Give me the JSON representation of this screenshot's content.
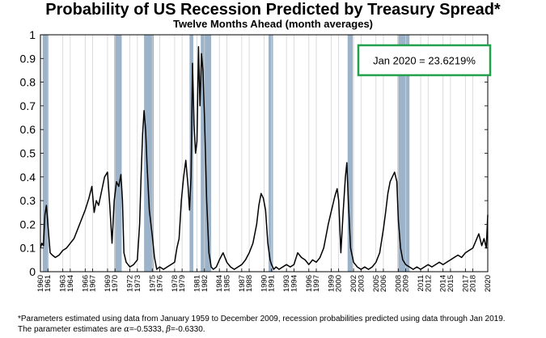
{
  "chart_data": {
    "type": "line",
    "title": "Probability of US Recession Predicted by Treasury Spread*",
    "subtitle": "Twelve Months Ahead (month averages)",
    "xlabel": "",
    "ylabel": "",
    "ylim": [
      0,
      1
    ],
    "xlim": [
      1960,
      2020
    ],
    "y_ticks": [
      "0",
      "0.1",
      "0.2",
      "0.3",
      "0.4",
      "0.5",
      "0.6",
      "0.7",
      "0.8",
      "0.9",
      "1"
    ],
    "x_ticks": [
      "1960",
      "1961",
      "1963",
      "1964",
      "1966",
      "1967",
      "1969",
      "1970",
      "1972",
      "1973",
      "1975",
      "1976",
      "1978",
      "1979",
      "1981",
      "1982",
      "1984",
      "1985",
      "1987",
      "1988",
      "1990",
      "1991",
      "1993",
      "1994",
      "1996",
      "1997",
      "1999",
      "2000",
      "2002",
      "2003",
      "2005",
      "2006",
      "2008",
      "2009",
      "2011",
      "2012",
      "2014",
      "2015",
      "2017",
      "2018",
      "2020"
    ],
    "grid": "vertical",
    "recessions": [
      [
        1960.3,
        1961.1
      ],
      [
        1969.9,
        1970.9
      ],
      [
        1973.9,
        1975.2
      ],
      [
        1980.0,
        1980.5
      ],
      [
        1981.5,
        1982.9
      ],
      [
        1990.6,
        1991.2
      ],
      [
        2001.2,
        2001.9
      ],
      [
        2007.9,
        2009.5
      ]
    ],
    "series": [
      {
        "x": [
          1960.0,
          1960.2,
          1960.4,
          1960.6,
          1960.8,
          1961.0,
          1961.3,
          1961.6,
          1962.0,
          1962.5,
          1963.0,
          1963.5,
          1964.0,
          1964.5,
          1965.0,
          1965.5,
          1966.0,
          1966.5,
          1966.9,
          1967.2,
          1967.5,
          1967.8,
          1968.2,
          1968.6,
          1969.0,
          1969.3,
          1969.6,
          1969.9,
          1970.2,
          1970.5,
          1970.8,
          1971.0,
          1971.2,
          1971.5,
          1972.0,
          1972.5,
          1973.0,
          1973.3,
          1973.5,
          1973.7,
          1973.9,
          1974.1,
          1974.3,
          1974.6,
          1975.0,
          1975.3,
          1975.6,
          1976.0,
          1976.5,
          1977.0,
          1977.5,
          1978.0,
          1978.3,
          1978.6,
          1978.9,
          1979.2,
          1979.5,
          1979.8,
          1980.0,
          1980.2,
          1980.4,
          1980.6,
          1980.8,
          1981.0,
          1981.2,
          1981.4,
          1981.6,
          1981.8,
          1982.0,
          1982.3,
          1982.6,
          1982.9,
          1983.2,
          1983.6,
          1984.0,
          1984.5,
          1985.0,
          1985.5,
          1986.0,
          1986.5,
          1987.0,
          1987.5,
          1988.0,
          1988.5,
          1989.0,
          1989.3,
          1989.6,
          1989.9,
          1990.2,
          1990.5,
          1990.8,
          1991.0,
          1991.3,
          1991.6,
          1992.0,
          1992.5,
          1993.0,
          1993.5,
          1994.0,
          1994.5,
          1995.0,
          1995.5,
          1996.0,
          1996.5,
          1997.0,
          1997.5,
          1998.0,
          1998.3,
          1998.6,
          1998.9,
          1999.2,
          1999.5,
          1999.8,
          2000.0,
          2000.3,
          2000.6,
          2000.9,
          2001.1,
          2001.3,
          2001.6,
          2002.0,
          2002.5,
          2003.0,
          2003.5,
          2004.0,
          2004.5,
          2005.0,
          2005.5,
          2006.0,
          2006.3,
          2006.6,
          2006.9,
          2007.2,
          2007.5,
          2007.8,
          2008.0,
          2008.3,
          2008.6,
          2009.0,
          2009.5,
          2010.0,
          2010.5,
          2011.0,
          2011.5,
          2012.0,
          2012.5,
          2013.0,
          2013.5,
          2014.0,
          2014.5,
          2015.0,
          2015.5,
          2016.0,
          2016.5,
          2017.0,
          2017.5,
          2018.0,
          2018.4,
          2018.8,
          2019.2,
          2019.5,
          2019.8,
          2020.0
        ],
        "values": [
          0.1,
          0.12,
          0.11,
          0.24,
          0.28,
          0.2,
          0.08,
          0.07,
          0.06,
          0.07,
          0.09,
          0.1,
          0.12,
          0.14,
          0.18,
          0.22,
          0.26,
          0.31,
          0.36,
          0.25,
          0.3,
          0.28,
          0.34,
          0.4,
          0.42,
          0.28,
          0.12,
          0.3,
          0.38,
          0.36,
          0.41,
          0.3,
          0.08,
          0.04,
          0.02,
          0.03,
          0.05,
          0.2,
          0.4,
          0.58,
          0.68,
          0.6,
          0.45,
          0.26,
          0.15,
          0.06,
          0.01,
          0.02,
          0.01,
          0.02,
          0.03,
          0.04,
          0.1,
          0.14,
          0.3,
          0.4,
          0.47,
          0.36,
          0.26,
          0.4,
          0.88,
          0.62,
          0.5,
          0.55,
          0.95,
          0.7,
          0.92,
          0.85,
          0.65,
          0.3,
          0.08,
          0.02,
          0.01,
          0.02,
          0.05,
          0.08,
          0.04,
          0.02,
          0.01,
          0.02,
          0.03,
          0.05,
          0.08,
          0.12,
          0.2,
          0.28,
          0.33,
          0.31,
          0.26,
          0.12,
          0.05,
          0.03,
          0.01,
          0.02,
          0.01,
          0.02,
          0.03,
          0.02,
          0.03,
          0.08,
          0.06,
          0.05,
          0.03,
          0.05,
          0.04,
          0.06,
          0.1,
          0.15,
          0.2,
          0.24,
          0.28,
          0.32,
          0.35,
          0.3,
          0.08,
          0.25,
          0.4,
          0.46,
          0.3,
          0.1,
          0.04,
          0.02,
          0.01,
          0.02,
          0.01,
          0.02,
          0.04,
          0.08,
          0.18,
          0.25,
          0.33,
          0.38,
          0.4,
          0.42,
          0.38,
          0.22,
          0.1,
          0.05,
          0.03,
          0.02,
          0.01,
          0.02,
          0.01,
          0.02,
          0.03,
          0.02,
          0.03,
          0.04,
          0.03,
          0.04,
          0.05,
          0.06,
          0.07,
          0.06,
          0.08,
          0.09,
          0.1,
          0.13,
          0.16,
          0.11,
          0.14,
          0.1,
          0.24
        ]
      }
    ],
    "annotation": "Jan 2020 = 23.6219%",
    "colors": {
      "line": "#000000",
      "recession": "#9db3c9",
      "annotation_border": "#22a04b",
      "grid": "#d3d3d3"
    }
  },
  "footnotes": {
    "line1": "*Parameters estimated using data from January 1959 to December 2009, recession probabilities predicted using data through Jan 2019.",
    "line2_prefix": "The parameter estimates are ",
    "alpha_symbol": "α",
    "alpha_value": "=-0.5333, ",
    "beta_symbol": "β",
    "beta_value": "=-0.6330."
  }
}
